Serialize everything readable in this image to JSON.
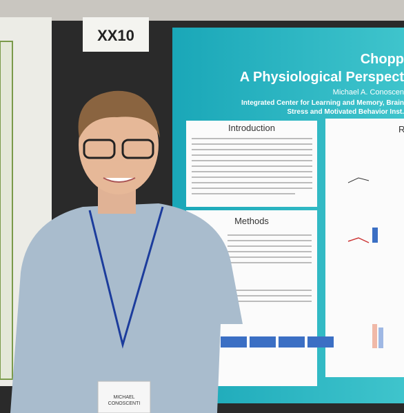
{
  "sign": "XX10",
  "poster": {
    "title_line1": "Chopp",
    "title_line2": "A Physiological Perspect",
    "author": "Michael A. Conoscen",
    "affiliation_1": "Integrated Center for Learning and Memory, Brain",
    "affiliation_2": "Stress and Motivated Behavior Inst.",
    "sections": [
      "Introduction",
      "Methods",
      "R"
    ]
  },
  "badge": {
    "first_name": "MICHAEL",
    "last_name": "CONOSCENTI"
  }
}
